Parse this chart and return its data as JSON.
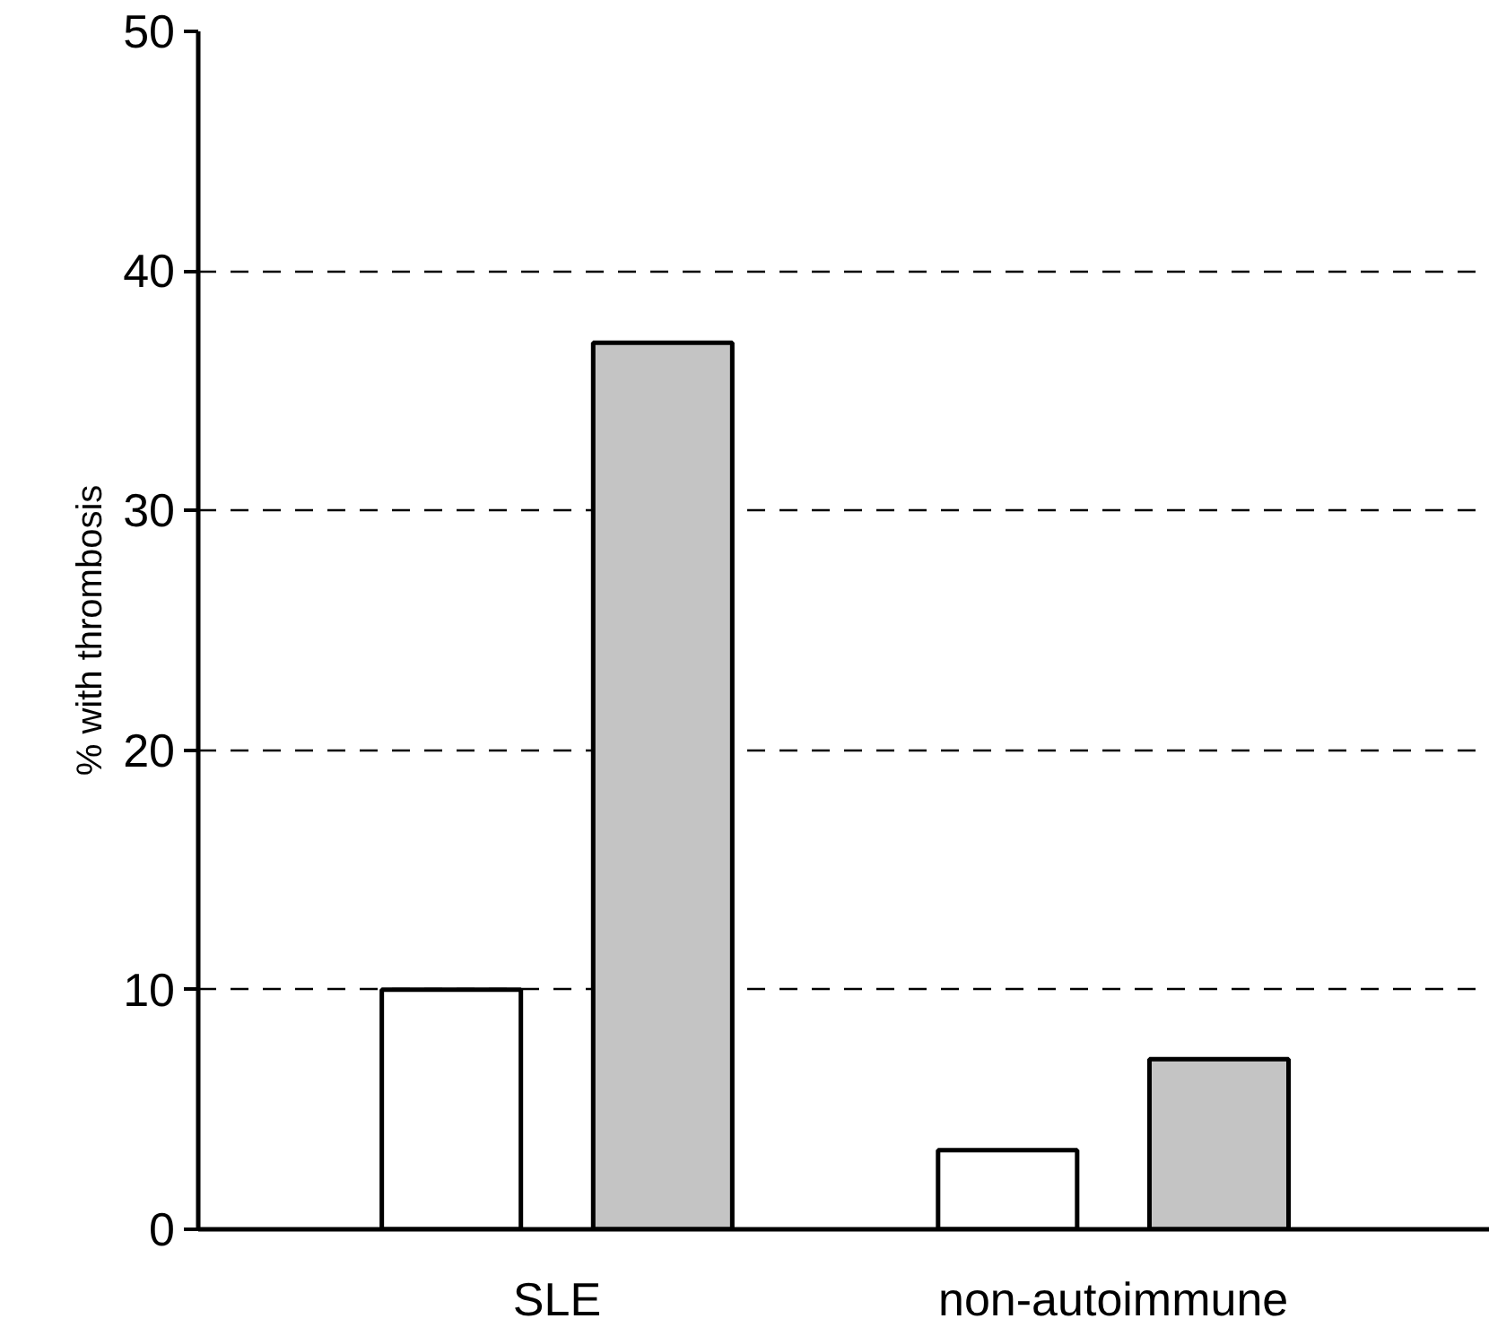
{
  "chart_data": {
    "type": "bar",
    "ylabel": "% with thrombosis",
    "categories": [
      "SLE",
      "non-autoimmune"
    ],
    "series": [
      {
        "color": "#ffffff",
        "values": [
          10,
          3.3
        ]
      },
      {
        "color": "#c4c4c4",
        "values": [
          37,
          7.1
        ]
      }
    ],
    "ylim": [
      0,
      50
    ],
    "yticks": [
      0,
      10,
      20,
      30,
      40,
      50
    ],
    "grid": "y"
  }
}
